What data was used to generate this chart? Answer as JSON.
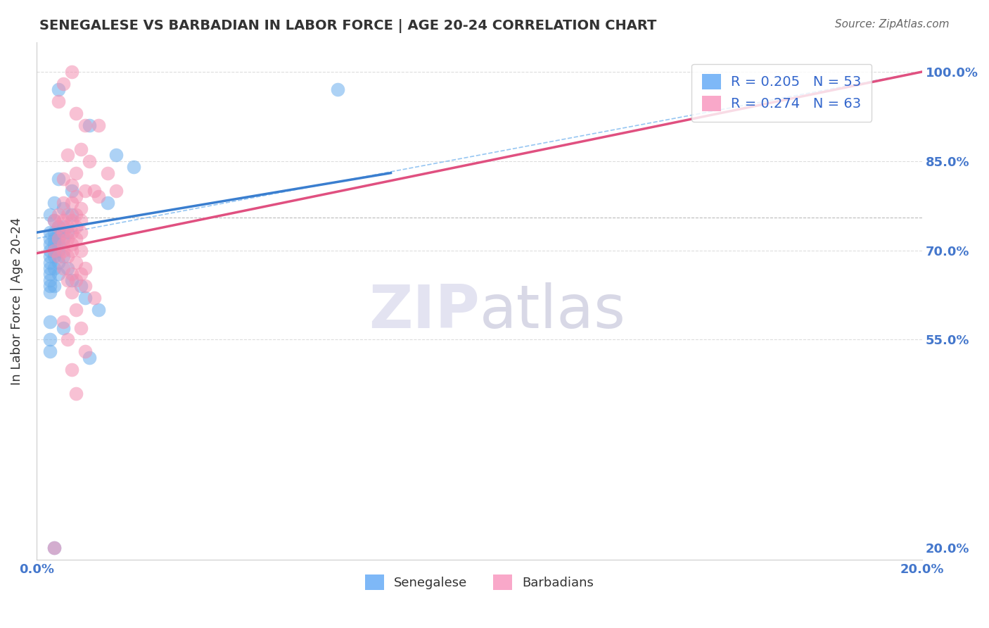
{
  "title": "SENEGALESE VS BARBADIAN IN LABOR FORCE | AGE 20-24 CORRELATION CHART",
  "source": "Source: ZipAtlas.com",
  "xlabel_bottom": "",
  "ylabel": "In Labor Force | Age 20-24",
  "x_tick_labels": [
    "0.0%",
    "20.0%"
  ],
  "y_tick_labels": [
    "20.0%",
    "55.0%",
    "70.0%",
    "85.0%",
    "100.0%"
  ],
  "y_tick_values": [
    0.2,
    0.55,
    0.7,
    0.85,
    1.0
  ],
  "x_range": [
    0.0,
    0.2
  ],
  "y_range": [
    0.18,
    1.05
  ],
  "legend_entries": [
    {
      "label": "R = 0.205   N = 53",
      "color": "#7eb8f7"
    },
    {
      "label": "R = 0.274   N = 63",
      "color": "#f9a8c9"
    }
  ],
  "legend_bottom": [
    {
      "label": "Senegalese",
      "color": "#7eb8f7"
    },
    {
      "label": "Barbadians",
      "color": "#f9a8c9"
    }
  ],
  "watermark": "ZIPatlas",
  "blue_color": "#6aaeed",
  "pink_color": "#f48fb1",
  "blue_scatter": [
    [
      0.005,
      0.97
    ],
    [
      0.012,
      0.91
    ],
    [
      0.018,
      0.86
    ],
    [
      0.022,
      0.84
    ],
    [
      0.005,
      0.82
    ],
    [
      0.008,
      0.8
    ],
    [
      0.004,
      0.78
    ],
    [
      0.016,
      0.78
    ],
    [
      0.006,
      0.77
    ],
    [
      0.003,
      0.76
    ],
    [
      0.008,
      0.76
    ],
    [
      0.004,
      0.75
    ],
    [
      0.005,
      0.74
    ],
    [
      0.006,
      0.74
    ],
    [
      0.004,
      0.73
    ],
    [
      0.003,
      0.73
    ],
    [
      0.005,
      0.73
    ],
    [
      0.007,
      0.73
    ],
    [
      0.003,
      0.72
    ],
    [
      0.004,
      0.72
    ],
    [
      0.005,
      0.72
    ],
    [
      0.006,
      0.72
    ],
    [
      0.003,
      0.71
    ],
    [
      0.004,
      0.71
    ],
    [
      0.005,
      0.71
    ],
    [
      0.003,
      0.7
    ],
    [
      0.004,
      0.7
    ],
    [
      0.005,
      0.7
    ],
    [
      0.003,
      0.69
    ],
    [
      0.004,
      0.69
    ],
    [
      0.006,
      0.69
    ],
    [
      0.003,
      0.68
    ],
    [
      0.005,
      0.68
    ],
    [
      0.003,
      0.67
    ],
    [
      0.004,
      0.67
    ],
    [
      0.007,
      0.67
    ],
    [
      0.003,
      0.66
    ],
    [
      0.005,
      0.66
    ],
    [
      0.003,
      0.65
    ],
    [
      0.008,
      0.65
    ],
    [
      0.003,
      0.64
    ],
    [
      0.004,
      0.64
    ],
    [
      0.01,
      0.64
    ],
    [
      0.003,
      0.63
    ],
    [
      0.011,
      0.62
    ],
    [
      0.014,
      0.6
    ],
    [
      0.003,
      0.58
    ],
    [
      0.006,
      0.57
    ],
    [
      0.003,
      0.55
    ],
    [
      0.003,
      0.53
    ],
    [
      0.012,
      0.52
    ],
    [
      0.004,
      0.2
    ],
    [
      0.068,
      0.97
    ]
  ],
  "pink_scatter": [
    [
      0.008,
      1.0
    ],
    [
      0.006,
      0.98
    ],
    [
      0.005,
      0.95
    ],
    [
      0.009,
      0.93
    ],
    [
      0.011,
      0.91
    ],
    [
      0.014,
      0.91
    ],
    [
      0.01,
      0.87
    ],
    [
      0.007,
      0.86
    ],
    [
      0.012,
      0.85
    ],
    [
      0.009,
      0.83
    ],
    [
      0.016,
      0.83
    ],
    [
      0.006,
      0.82
    ],
    [
      0.008,
      0.81
    ],
    [
      0.011,
      0.8
    ],
    [
      0.013,
      0.8
    ],
    [
      0.018,
      0.8
    ],
    [
      0.009,
      0.79
    ],
    [
      0.014,
      0.79
    ],
    [
      0.006,
      0.78
    ],
    [
      0.008,
      0.78
    ],
    [
      0.01,
      0.77
    ],
    [
      0.005,
      0.76
    ],
    [
      0.007,
      0.76
    ],
    [
      0.009,
      0.76
    ],
    [
      0.004,
      0.75
    ],
    [
      0.006,
      0.75
    ],
    [
      0.008,
      0.75
    ],
    [
      0.01,
      0.75
    ],
    [
      0.005,
      0.74
    ],
    [
      0.007,
      0.74
    ],
    [
      0.009,
      0.74
    ],
    [
      0.006,
      0.73
    ],
    [
      0.008,
      0.73
    ],
    [
      0.01,
      0.73
    ],
    [
      0.005,
      0.72
    ],
    [
      0.007,
      0.72
    ],
    [
      0.009,
      0.72
    ],
    [
      0.006,
      0.71
    ],
    [
      0.008,
      0.71
    ],
    [
      0.004,
      0.7
    ],
    [
      0.006,
      0.7
    ],
    [
      0.008,
      0.7
    ],
    [
      0.01,
      0.7
    ],
    [
      0.005,
      0.69
    ],
    [
      0.007,
      0.69
    ],
    [
      0.009,
      0.68
    ],
    [
      0.006,
      0.67
    ],
    [
      0.011,
      0.67
    ],
    [
      0.008,
      0.66
    ],
    [
      0.01,
      0.66
    ],
    [
      0.007,
      0.65
    ],
    [
      0.009,
      0.65
    ],
    [
      0.011,
      0.64
    ],
    [
      0.008,
      0.63
    ],
    [
      0.013,
      0.62
    ],
    [
      0.009,
      0.6
    ],
    [
      0.006,
      0.58
    ],
    [
      0.01,
      0.57
    ],
    [
      0.007,
      0.55
    ],
    [
      0.011,
      0.53
    ],
    [
      0.008,
      0.5
    ],
    [
      0.009,
      0.46
    ],
    [
      0.004,
      0.2
    ]
  ],
  "blue_line": {
    "x0": 0.0,
    "y0": 0.73,
    "x1": 0.08,
    "y1": 0.83
  },
  "pink_line": {
    "x0": 0.0,
    "y0": 0.695,
    "x1": 0.2,
    "y1": 1.0
  },
  "ref_line": {
    "x0": 0.0,
    "y0": 0.72,
    "x1": 0.2,
    "y1": 1.0
  },
  "hgrid_values": [
    0.55,
    0.7,
    0.85,
    1.0
  ],
  "title_color": "#333333",
  "source_color": "#666666",
  "axis_color": "#cccccc",
  "grid_color": "#dddddd",
  "watermark_color_zip": "#aaaacc",
  "watermark_color_atlas": "#8888aa"
}
